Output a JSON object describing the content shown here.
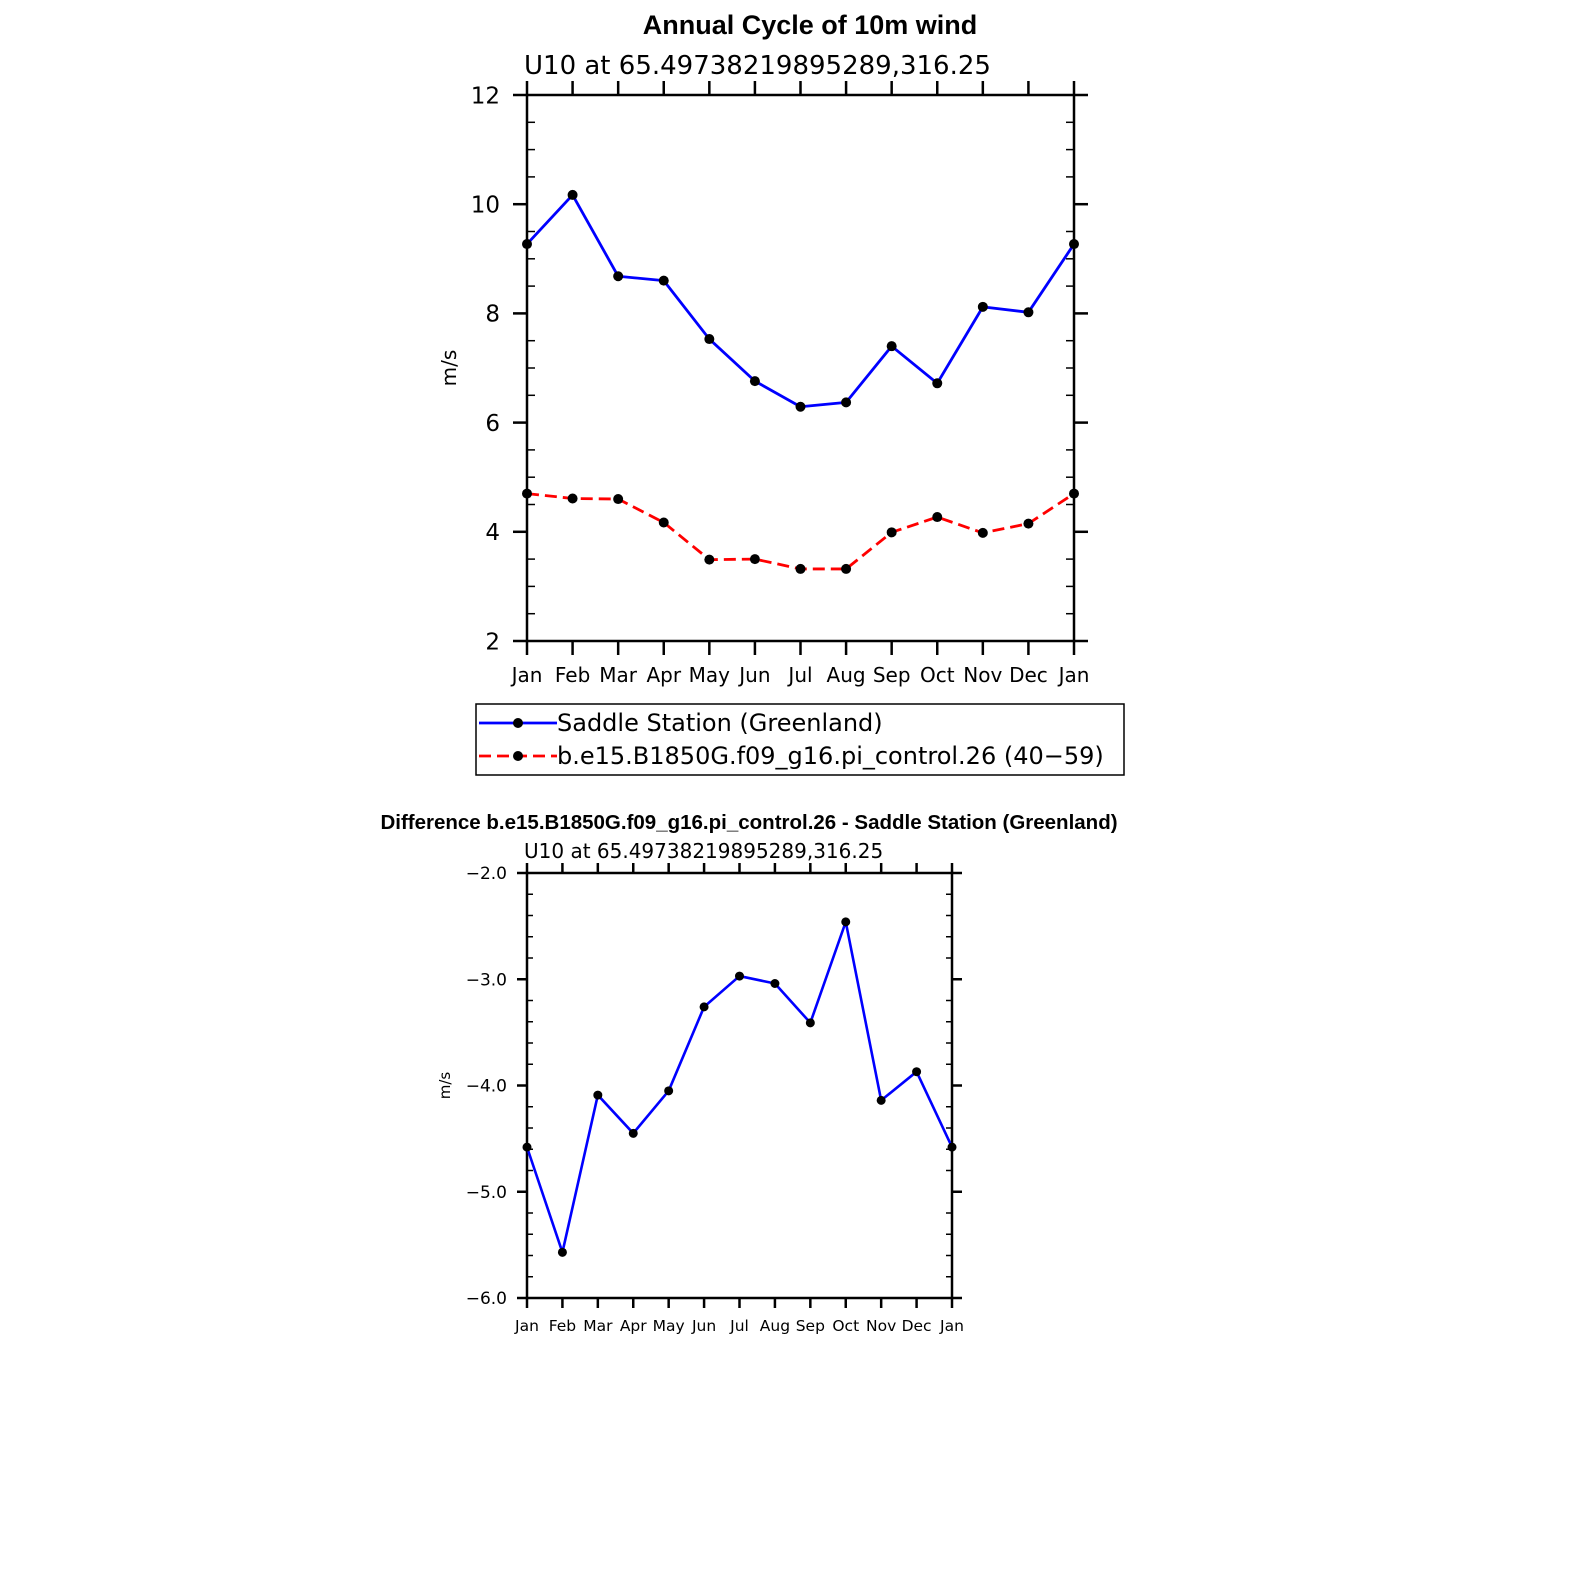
{
  "figure": {
    "title": "Annual Cycle of 10m wind",
    "difference_title": "Difference b.e15.B1850G.f09_g16.pi_control.26 - Saddle Station (Greenland)"
  },
  "chart_data": [
    {
      "type": "line",
      "subtitle": "U10 at 65.49738219895289,316.25",
      "ylabel": "m/s",
      "xlabel": "",
      "categories": [
        "Jan",
        "Feb",
        "Mar",
        "Apr",
        "May",
        "Jun",
        "Jul",
        "Aug",
        "Sep",
        "Oct",
        "Nov",
        "Dec",
        "Jan"
      ],
      "ylim": [
        2,
        12
      ],
      "yticks": [
        2,
        4,
        6,
        8,
        10,
        12
      ],
      "ytick_labels": [
        "2",
        "4",
        "6",
        "8",
        "10",
        "12"
      ],
      "grid": false,
      "legend_position": "bottom",
      "series": [
        {
          "name": "Saddle Station (Greenland)",
          "color": "#0000ff",
          "style": "solid",
          "values": [
            9.27,
            10.17,
            8.68,
            8.6,
            7.53,
            6.76,
            6.29,
            6.37,
            7.4,
            6.72,
            8.12,
            8.02,
            9.27
          ]
        },
        {
          "name": "b.e15.B1850G.f09_g16.pi_control.26 (40−59)",
          "color": "#ff0000",
          "style": "dashed",
          "values": [
            4.7,
            4.61,
            4.6,
            4.17,
            3.49,
            3.5,
            3.32,
            3.32,
            3.99,
            4.27,
            3.98,
            4.15,
            4.7
          ]
        }
      ]
    },
    {
      "type": "line",
      "subtitle": "U10 at 65.49738219895289,316.25",
      "ylabel": "m/s",
      "xlabel": "",
      "categories": [
        "Jan",
        "Feb",
        "Mar",
        "Apr",
        "May",
        "Jun",
        "Jul",
        "Aug",
        "Sep",
        "Oct",
        "Nov",
        "Dec",
        "Jan"
      ],
      "ylim": [
        -6.0,
        -2.0
      ],
      "yticks": [
        -6.0,
        -5.0,
        -4.0,
        -3.0,
        -2.0
      ],
      "ytick_labels": [
        "−6.0",
        "−5.0",
        "−4.0",
        "−3.0",
        "−2.0"
      ],
      "grid": false,
      "series": [
        {
          "color": "#0000ff",
          "style": "solid",
          "values": [
            -4.58,
            -5.57,
            -4.09,
            -4.45,
            -4.05,
            -3.26,
            -2.97,
            -3.04,
            -3.41,
            -2.46,
            -4.14,
            -3.87,
            -4.58
          ]
        }
      ]
    }
  ]
}
